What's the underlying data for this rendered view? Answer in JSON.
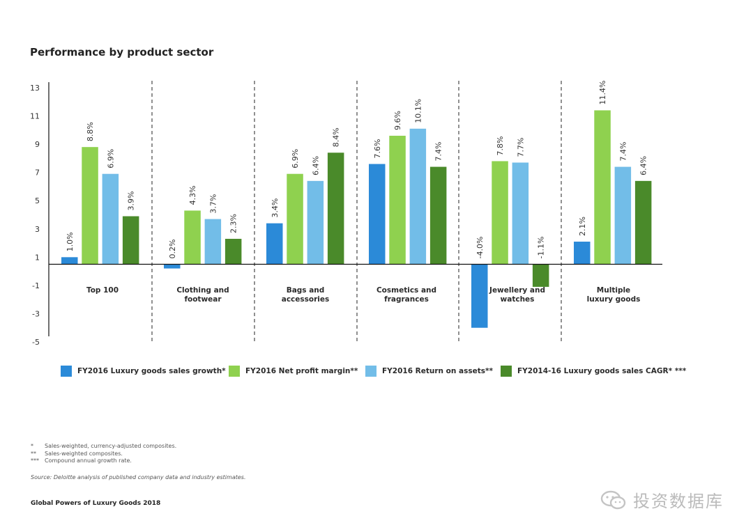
{
  "title": "Performance by product sector",
  "chart_data": {
    "type": "bar",
    "categories": [
      "Top 100",
      "Clothing and footwear",
      "Bags and accessories",
      "Cosmetics and fragrances",
      "Jewellery and watches",
      "Multiple luxury goods"
    ],
    "category_lines": [
      [
        "Top 100"
      ],
      [
        "Clothing and",
        "footwear"
      ],
      [
        "Bags and",
        "accessories"
      ],
      [
        "Cosmetics and",
        "fragrances"
      ],
      [
        "Jewellery and",
        "watches"
      ],
      [
        "Multiple",
        "luxury goods"
      ]
    ],
    "series": [
      {
        "name": "FY2016 Luxury goods sales growth*",
        "color": "#2b8ad8",
        "values": [
          1.0,
          0.2,
          3.4,
          7.6,
          -4.0,
          2.1
        ]
      },
      {
        "name": "FY2016 Net profit margin**",
        "color": "#8fd14f",
        "values": [
          8.8,
          4.3,
          6.9,
          9.6,
          7.8,
          11.4
        ]
      },
      {
        "name": "FY2016 Return on assets**",
        "color": "#72bde8",
        "values": [
          6.9,
          3.7,
          6.4,
          10.1,
          7.7,
          7.4
        ]
      },
      {
        "name": "FY2014-16 Luxury goods sales CAGR* ***",
        "color": "#4a8a2a",
        "values": [
          3.9,
          2.3,
          8.4,
          7.4,
          -1.1,
          6.4
        ]
      }
    ],
    "data_labels": [
      [
        "1.0%",
        "0.2%",
        "3.4%",
        "7.6%",
        "-4.0%",
        "2.1%"
      ],
      [
        "8.8%",
        "4.3%",
        "6.9%",
        "9.6%",
        "7.8%",
        "11.4%"
      ],
      [
        "6.9%",
        "3.7%",
        "6.4%",
        "10.1%",
        "7.7%",
        "7.4%"
      ],
      [
        "3.9%",
        "2.3%",
        "8.4%",
        "7.4%",
        "-1.1%",
        "6.4%"
      ]
    ],
    "yticks": [
      "13",
      "11",
      "9",
      "7",
      "5",
      "3",
      "1",
      "-1",
      "-3",
      "-5"
    ],
    "ylim": [
      -5,
      13
    ],
    "baseline": 0.5,
    "legend_position": "bottom",
    "grid": false
  },
  "notes": [
    {
      "mark": "*",
      "text": "Sales-weighted, currency-adjusted composites."
    },
    {
      "mark": "**",
      "text": "Sales-weighted composites."
    },
    {
      "mark": "***",
      "text": "Compound annual growth rate."
    }
  ],
  "source": "Source: Deloitte analysis of published company data and industry estimates.",
  "report_title": "Global Powers of Luxury Goods 2018",
  "watermark": "投资数据库"
}
